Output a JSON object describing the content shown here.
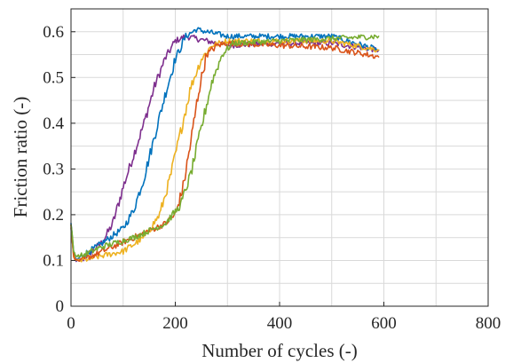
{
  "chart_data": {
    "type": "line",
    "title": "",
    "xlabel": "Number of cycles (-)",
    "ylabel": "Friction ratio (-)",
    "xlim": [
      0,
      800
    ],
    "ylim": [
      0,
      0.65
    ],
    "xticks": [
      0,
      200,
      400,
      600,
      800
    ],
    "yticks": [
      0,
      0.1,
      0.2,
      0.3,
      0.4,
      0.5,
      0.6
    ],
    "grid": true,
    "series": [
      {
        "color": "#7E2F8E",
        "x": [
          0,
          5,
          10,
          20,
          40,
          60,
          80,
          100,
          120,
          140,
          160,
          180,
          200,
          220,
          240,
          260,
          300,
          400,
          500,
          590
        ],
        "y": [
          0.17,
          0.11,
          0.1,
          0.1,
          0.12,
          0.14,
          0.18,
          0.26,
          0.33,
          0.4,
          0.48,
          0.54,
          0.58,
          0.59,
          0.585,
          0.58,
          0.57,
          0.575,
          0.575,
          0.56
        ]
      },
      {
        "color": "#0072BD",
        "x": [
          0,
          5,
          10,
          20,
          50,
          100,
          120,
          140,
          160,
          180,
          200,
          220,
          240,
          260,
          300,
          400,
          500,
          590
        ],
        "y": [
          0.18,
          0.12,
          0.1,
          0.11,
          0.13,
          0.17,
          0.21,
          0.28,
          0.37,
          0.46,
          0.54,
          0.59,
          0.605,
          0.6,
          0.59,
          0.59,
          0.59,
          0.56
        ]
      },
      {
        "color": "#EDB120",
        "x": [
          0,
          5,
          10,
          20,
          60,
          100,
          140,
          170,
          190,
          210,
          230,
          250,
          270,
          300,
          400,
          500,
          590
        ],
        "y": [
          0.17,
          0.11,
          0.1,
          0.1,
          0.11,
          0.12,
          0.15,
          0.2,
          0.28,
          0.38,
          0.48,
          0.54,
          0.57,
          0.58,
          0.58,
          0.58,
          0.56
        ]
      },
      {
        "color": "#D95319",
        "x": [
          0,
          5,
          10,
          20,
          60,
          120,
          180,
          200,
          215,
          230,
          245,
          260,
          280,
          300,
          400,
          500,
          590
        ],
        "y": [
          0.18,
          0.11,
          0.1,
          0.1,
          0.12,
          0.15,
          0.18,
          0.2,
          0.26,
          0.36,
          0.47,
          0.55,
          0.57,
          0.575,
          0.57,
          0.565,
          0.545
        ]
      },
      {
        "color": "#77AC30",
        "x": [
          0,
          5,
          10,
          20,
          60,
          120,
          180,
          210,
          230,
          250,
          270,
          290,
          310,
          400,
          500,
          590
        ],
        "y": [
          0.18,
          0.12,
          0.11,
          0.11,
          0.13,
          0.15,
          0.18,
          0.22,
          0.29,
          0.39,
          0.49,
          0.55,
          0.575,
          0.58,
          0.585,
          0.59
        ]
      }
    ]
  }
}
